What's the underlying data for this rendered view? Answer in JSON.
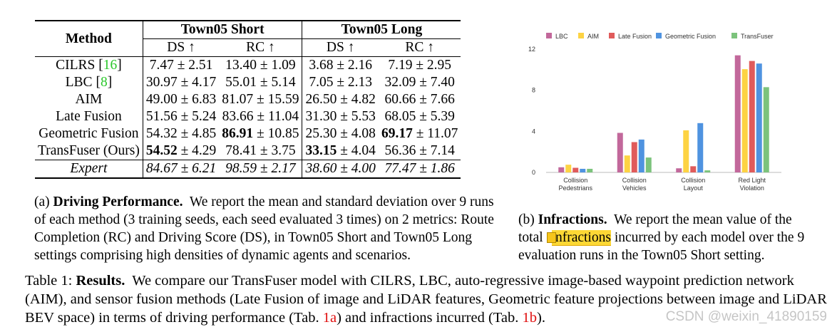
{
  "table": {
    "header": {
      "method": "Method",
      "group1": "Town05 Short",
      "group2": "Town05 Long",
      "sub": [
        "DS ↑",
        "RC ↑",
        "DS ↑",
        "RC ↑"
      ]
    },
    "rows": [
      {
        "name": "CILRS",
        "ref": "16",
        "cells": [
          "7.47 ± 2.51",
          "13.40 ± 1.09",
          "3.68 ± 2.16",
          "7.19 ± 2.95"
        ]
      },
      {
        "name": "LBC",
        "ref": "8",
        "cells": [
          "30.97 ± 4.17",
          "55.01 ± 5.14",
          "7.05 ± 2.13",
          "32.09 ± 7.40"
        ]
      },
      {
        "name": "AIM",
        "ref": "",
        "cells": [
          "49.00 ± 6.83",
          "81.07 ± 15.59",
          "26.50 ± 4.82",
          "60.66 ± 7.66"
        ]
      },
      {
        "name": "Late Fusion",
        "ref": "",
        "cells": [
          "51.56 ± 5.24",
          "83.66 ± 11.04",
          "31.30 ± 5.53",
          "68.05 ± 5.39"
        ]
      },
      {
        "name": "Geometric Fusion",
        "ref": "",
        "cells": [
          "54.32 ± 4.85",
          "86.91 ± 10.85",
          "25.30 ± 4.08",
          "69.17 ± 11.07"
        ],
        "bold_parts": [
          "",
          "86.91",
          "",
          "69.17"
        ],
        "rest_parts": [
          "",
          " ± 10.85",
          "",
          " ± 11.07"
        ]
      },
      {
        "name": "TransFuser (Ours)",
        "ref": "",
        "cells": [
          "54.52 ± 4.29",
          "78.41 ± 3.75",
          "33.15 ± 4.04",
          "56.36 ± 7.14"
        ],
        "bold_parts": [
          "54.52",
          "",
          "33.15",
          ""
        ],
        "rest_parts": [
          " ± 4.29",
          "",
          " ± 4.04",
          ""
        ]
      }
    ],
    "expert": {
      "name": "Expert",
      "cells": [
        "84.67 ± 6.21",
        "98.59 ± 2.17",
        "38.60 ± 4.00",
        "77.47 ± 1.86"
      ]
    }
  },
  "caption_a": {
    "label": "(a)",
    "title": "Driving Performance.",
    "text": "We report the mean and standard deviation over 9 runs of each method (3 training seeds, each seed evaluated 3 times) on 2 metrics: Route Completion (RC) and Driving Score (DS), in Town05 Short and Town05 Long settings comprising high densities of dynamic agents and scenarios."
  },
  "caption_b": {
    "label": "(b)",
    "title": "Infractions.",
    "text1": "We report the mean value of the total",
    "highlight": "infractions",
    "text2": "incurred by each model over the 9 evaluation runs in the Town05 Short setting."
  },
  "caption_main": {
    "label": "Table 1:",
    "title": "Results.",
    "text1": "We compare our TransFuser model with CILRS, LBC, auto-regressive image-based waypoint prediction network (AIM), and sensor fusion methods (Late Fusion of image and LiDAR features, Geometric feature projections between image and LiDAR BEV space) in terms of driving performance (Tab.",
    "ref1": "1a",
    "text2": ") and infractions incurred (Tab.",
    "ref2": "1b",
    "text3": ")."
  },
  "watermark": "CSDN @weixin_41890159",
  "chart_data": {
    "type": "bar",
    "categories": [
      "Collision Pedestrians",
      "Collision Vehicles",
      "Collision Layout",
      "Red Light Violation"
    ],
    "category_lines": [
      [
        "Collision",
        "Pedestrians"
      ],
      [
        "Collision",
        "Vehicles"
      ],
      [
        "Collision",
        "Layout"
      ],
      [
        "Red Light",
        "Violation"
      ]
    ],
    "series": [
      {
        "name": "LBC",
        "color": "#c2689b",
        "values": [
          0.5,
          3.85,
          0.4,
          11.4
        ]
      },
      {
        "name": "AIM",
        "color": "#fdd343",
        "values": [
          0.75,
          1.65,
          4.1,
          10.05
        ]
      },
      {
        "name": "Late Fusion",
        "color": "#e05b5b",
        "values": [
          0.45,
          2.95,
          0.6,
          10.85
        ]
      },
      {
        "name": "Geometric Fusion",
        "color": "#4f93e0",
        "values": [
          0.35,
          3.2,
          4.8,
          10.6
        ]
      },
      {
        "name": "TransFuser",
        "color": "#7cc37c",
        "values": [
          0.35,
          1.45,
          0.2,
          8.3
        ]
      }
    ],
    "yticks": [
      "0",
      "4",
      "8",
      "12"
    ],
    "ylim": [
      0,
      12
    ],
    "grid": false,
    "legend": "top"
  }
}
